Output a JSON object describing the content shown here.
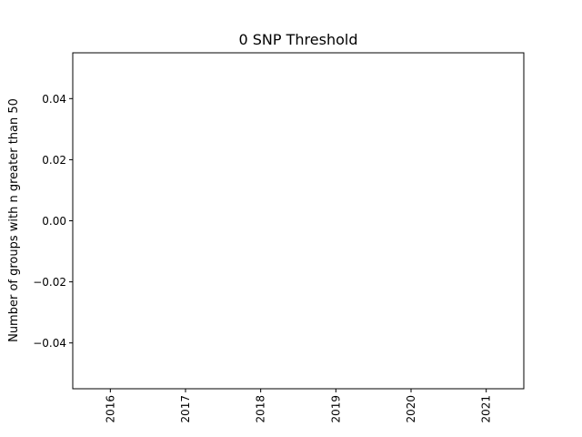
{
  "chart_data": {
    "type": "line",
    "title": "0 SNP Threshold",
    "xlabel": "",
    "ylabel": "Number of groups with n greater than 50",
    "categories": [
      "2016",
      "2017",
      "2018",
      "2019",
      "2020",
      "2021"
    ],
    "series": [],
    "ylim": [
      -0.055,
      0.055
    ],
    "yticks": [
      -0.04,
      -0.02,
      0.0,
      0.02,
      0.04
    ],
    "ytick_labels": [
      "−0.04",
      "−0.02",
      "0.00",
      "0.02",
      "0.04"
    ],
    "grid": false,
    "legend": "none"
  }
}
